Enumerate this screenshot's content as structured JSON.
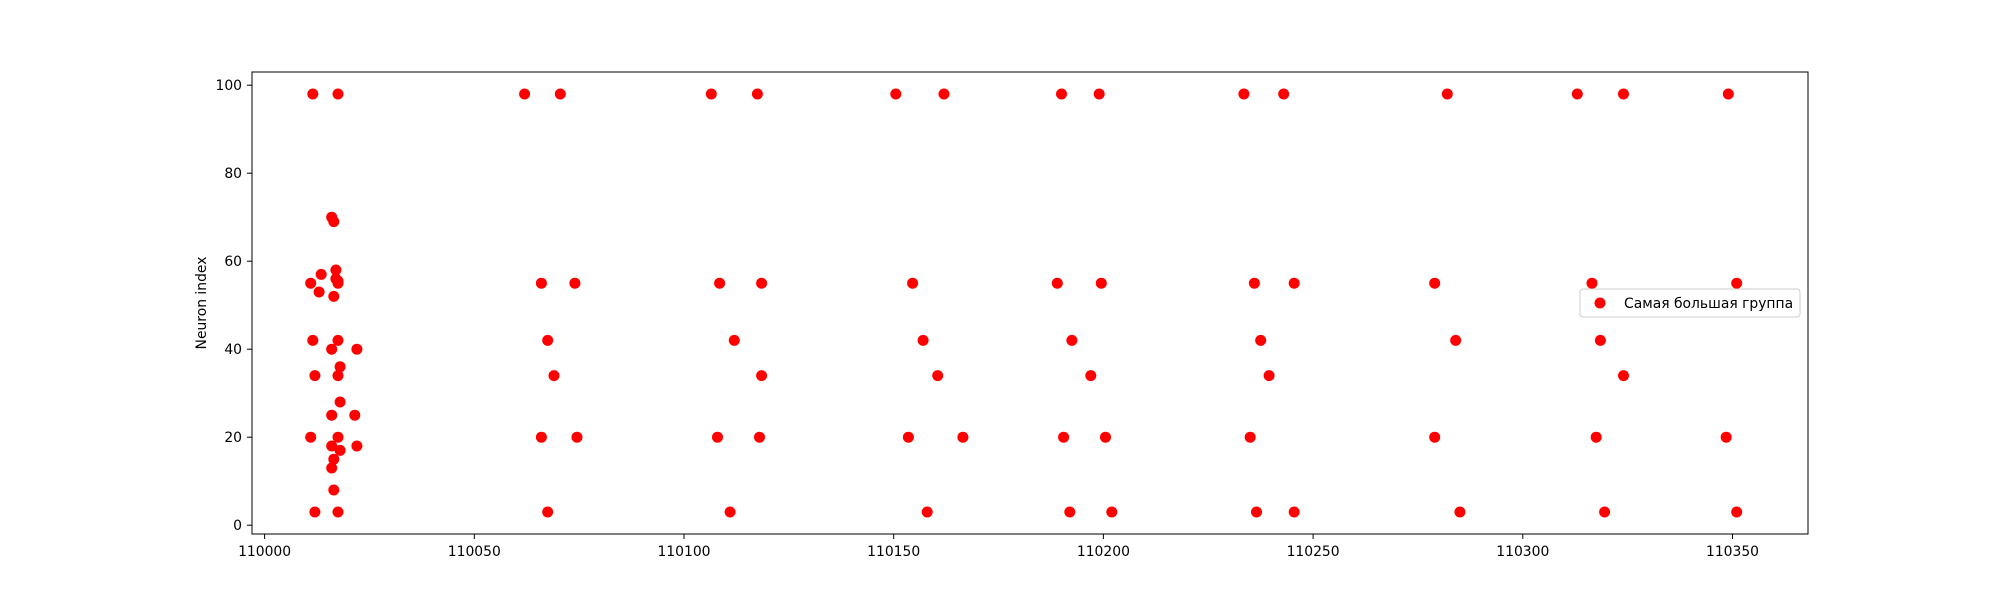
{
  "chart_data": {
    "type": "scatter",
    "title": "",
    "xlabel": "",
    "ylabel": "Neuron index",
    "xlim": [
      109997,
      110368
    ],
    "ylim": [
      -2,
      103
    ],
    "xticks": [
      110000,
      110050,
      110100,
      110150,
      110200,
      110250,
      110300,
      110350
    ],
    "yticks": [
      0,
      20,
      40,
      60,
      80,
      100
    ],
    "grid": false,
    "legend_position": "right",
    "series": [
      {
        "name": "Самая большая группа",
        "color": "#ff0000",
        "points": [
          [
            110011.5,
            98
          ],
          [
            110017.5,
            98
          ],
          [
            110062,
            98
          ],
          [
            110070.5,
            98
          ],
          [
            110106.5,
            98
          ],
          [
            110117.5,
            98
          ],
          [
            110150.5,
            98
          ],
          [
            110162,
            98
          ],
          [
            110190,
            98
          ],
          [
            110199,
            98
          ],
          [
            110233.5,
            98
          ],
          [
            110243,
            98
          ],
          [
            110282,
            98
          ],
          [
            110313,
            98
          ],
          [
            110324,
            98
          ],
          [
            110349,
            98
          ],
          [
            110016,
            70
          ],
          [
            110016.5,
            69
          ],
          [
            110017,
            58
          ],
          [
            110017,
            56
          ],
          [
            110017.5,
            55.5
          ],
          [
            110017.5,
            55
          ],
          [
            110013.5,
            57
          ],
          [
            110013,
            53
          ],
          [
            110016.5,
            52
          ],
          [
            110011,
            55
          ],
          [
            110066,
            55
          ],
          [
            110074,
            55
          ],
          [
            110108.5,
            55
          ],
          [
            110118.5,
            55
          ],
          [
            110154.5,
            55
          ],
          [
            110189,
            55
          ],
          [
            110199.5,
            55
          ],
          [
            110236,
            55
          ],
          [
            110245.5,
            55
          ],
          [
            110279,
            55
          ],
          [
            110316.5,
            55
          ],
          [
            110351,
            55
          ],
          [
            110011.5,
            42
          ],
          [
            110017.5,
            42
          ],
          [
            110067.5,
            42
          ],
          [
            110112,
            42
          ],
          [
            110157,
            42
          ],
          [
            110192.5,
            42
          ],
          [
            110237.5,
            42
          ],
          [
            110284,
            42
          ],
          [
            110318.5,
            42
          ],
          [
            110016,
            40
          ],
          [
            110022,
            40
          ],
          [
            110018,
            36
          ],
          [
            110012,
            34
          ],
          [
            110017.5,
            34
          ],
          [
            110069,
            34
          ],
          [
            110118.5,
            34
          ],
          [
            110160.5,
            34
          ],
          [
            110197,
            34
          ],
          [
            110239.5,
            34
          ],
          [
            110324,
            34
          ],
          [
            110018,
            28
          ],
          [
            110016,
            25
          ],
          [
            110021.5,
            25
          ],
          [
            110011,
            20
          ],
          [
            110017.5,
            20
          ],
          [
            110066,
            20
          ],
          [
            110074.5,
            20
          ],
          [
            110108,
            20
          ],
          [
            110118,
            20
          ],
          [
            110153.5,
            20
          ],
          [
            110166.5,
            20
          ],
          [
            110190.5,
            20
          ],
          [
            110200.5,
            20
          ],
          [
            110235,
            20
          ],
          [
            110279,
            20
          ],
          [
            110317.5,
            20
          ],
          [
            110348.5,
            20
          ],
          [
            110016,
            18
          ],
          [
            110022,
            18
          ],
          [
            110018,
            17
          ],
          [
            110016.5,
            15
          ],
          [
            110016,
            13
          ],
          [
            110016.5,
            8
          ],
          [
            110012,
            3
          ],
          [
            110017.5,
            3
          ],
          [
            110067.5,
            3
          ],
          [
            110111,
            3
          ],
          [
            110158,
            3
          ],
          [
            110192,
            3
          ],
          [
            110202,
            3
          ],
          [
            110236.5,
            3
          ],
          [
            110245.5,
            3
          ],
          [
            110285,
            3
          ],
          [
            110319.5,
            3
          ],
          [
            110351,
            3
          ]
        ]
      }
    ]
  }
}
